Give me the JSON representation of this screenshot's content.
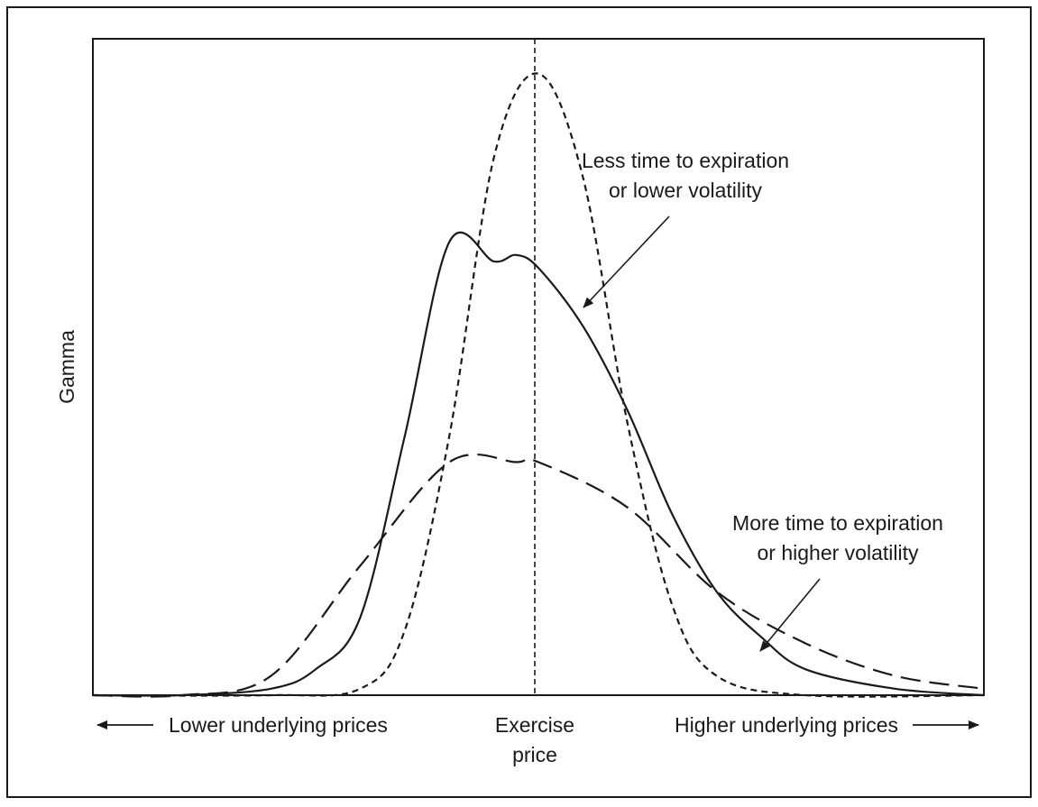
{
  "chart_data": {
    "type": "line",
    "title": "",
    "ylabel": "Gamma",
    "x_axis_labels": {
      "left": "Lower underlying prices",
      "center_line1": "Exercise",
      "center_line2": "price",
      "right": "Higher underlying prices"
    },
    "xlim": [
      -1,
      1
    ],
    "ylim": [
      0,
      1
    ],
    "grid": false,
    "reference_line": {
      "x": 0,
      "style": "dashed"
    },
    "annotations": [
      {
        "line1": "Less time to expiration",
        "line2": "or lower volatility",
        "target": "short-dash curve"
      },
      {
        "line1": "More time to expiration",
        "line2": "or higher volatility",
        "target": "long-dash curve"
      }
    ],
    "series": [
      {
        "style": "solid",
        "x": [
          -1.0,
          -0.8,
          -0.6,
          -0.5,
          -0.4,
          -0.3,
          -0.2,
          -0.1,
          -0.05,
          0.0,
          0.1,
          0.2,
          0.3,
          0.4,
          0.5,
          0.6,
          0.8,
          1.0
        ],
        "y": [
          0.0,
          0.0,
          0.01,
          0.04,
          0.12,
          0.4,
          0.7,
          0.67,
          0.68,
          0.66,
          0.57,
          0.44,
          0.28,
          0.16,
          0.09,
          0.04,
          0.01,
          0.0
        ]
      },
      {
        "style": "short-dash",
        "x": [
          -1.0,
          -0.6,
          -0.4,
          -0.3,
          -0.2,
          -0.1,
          0.0,
          0.1,
          0.2,
          0.3,
          0.4,
          0.6,
          1.0
        ],
        "y": [
          0.0,
          0.0,
          0.01,
          0.1,
          0.4,
          0.83,
          0.96,
          0.8,
          0.42,
          0.14,
          0.03,
          0.0,
          0.0
        ]
      },
      {
        "style": "long-dash",
        "x": [
          -1.0,
          -0.8,
          -0.6,
          -0.4,
          -0.2,
          -0.05,
          0.0,
          0.2,
          0.4,
          0.6,
          0.8,
          1.0
        ],
        "y": [
          0.0,
          0.0,
          0.03,
          0.2,
          0.36,
          0.36,
          0.36,
          0.29,
          0.16,
          0.08,
          0.03,
          0.01
        ]
      }
    ]
  }
}
